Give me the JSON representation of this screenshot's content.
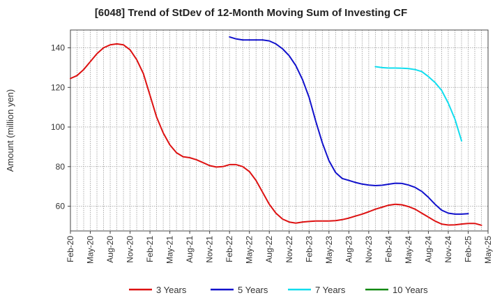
{
  "chart_data": {
    "type": "line",
    "title": "[6048]  Trend of StDev of 12-Month Moving Sum of Investing CF",
    "xlabel": "",
    "ylabel": "Amount (million yen)",
    "ylim": [
      47.5,
      149
    ],
    "yticks": [
      60,
      80,
      100,
      120,
      140
    ],
    "xticks": [
      "Feb-20",
      "May-20",
      "Aug-20",
      "Nov-20",
      "Feb-21",
      "May-21",
      "Aug-21",
      "Nov-21",
      "Feb-22",
      "May-22",
      "Aug-22",
      "Nov-22",
      "Feb-23",
      "May-23",
      "Aug-23",
      "Nov-23",
      "Feb-24",
      "May-24",
      "Aug-24",
      "Nov-24",
      "Feb-25",
      "May-25"
    ],
    "x_start": "Feb-20",
    "grid": true,
    "legend_position": "bottom",
    "series": [
      {
        "name": "3 Years",
        "color": "#dd1111",
        "start": "Feb-20",
        "values": [
          124.5,
          126,
          129,
          133,
          137,
          140,
          141.5,
          142,
          141.5,
          139,
          134,
          127,
          116,
          105,
          97,
          91,
          87,
          85,
          84.5,
          83.5,
          82,
          80.5,
          79.8,
          80,
          81,
          81,
          80,
          77.5,
          73,
          67,
          61,
          56.5,
          53.5,
          52,
          51.5,
          52,
          52.3,
          52.5,
          52.5,
          52.5,
          52.7,
          53.2,
          54,
          55,
          56,
          57.2,
          58.5,
          59.5,
          60.5,
          61,
          60.7,
          59.8,
          58.5,
          56.5,
          54.5,
          52.5,
          51,
          50.5,
          50.6,
          51,
          51.3,
          51.3,
          50.4
        ]
      },
      {
        "name": "5 Years",
        "color": "#1111cc",
        "start": "Feb-22",
        "values": [
          145.5,
          144.5,
          144,
          144,
          144,
          144,
          143.5,
          142,
          139.5,
          136,
          131,
          124,
          115,
          103,
          92,
          83,
          77,
          74,
          73,
          72,
          71.2,
          70.7,
          70.4,
          70.6,
          71.1,
          71.6,
          71.5,
          70.7,
          69.5,
          67.5,
          64.5,
          61,
          58,
          56.5,
          56,
          56,
          56.2
        ]
      },
      {
        "name": "7 Years",
        "color": "#11ddee",
        "start": "Dec-23",
        "values": [
          130.5,
          130,
          129.8,
          129.8,
          129.7,
          129.5,
          129,
          128,
          125.5,
          122.5,
          118.5,
          112,
          104,
          93
        ]
      },
      {
        "name": "10 Years",
        "color": "#118811",
        "start": "Feb-25",
        "values": []
      }
    ]
  }
}
